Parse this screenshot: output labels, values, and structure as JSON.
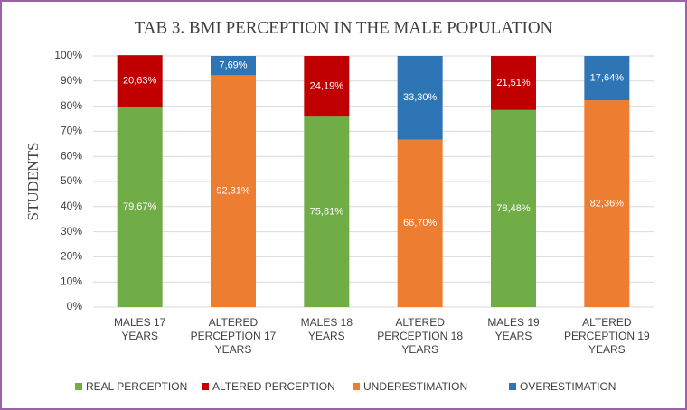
{
  "chart_data": {
    "type": "stacked_bar",
    "title": "TAB 3. BMI PERCEPTION IN THE MALE POPULATION",
    "y_label": "STUDENTS",
    "categories": [
      "MALES 17 YEARS",
      "ALTERED PERCEPTION 17 YEARS",
      "MALES 18 YEARS",
      "ALTERED PERCEPTION 18 YEARS",
      "MALES 19 YEARS",
      "ALTERED PERCEPTION 19 YEARS"
    ],
    "series": [
      {
        "name": "REAL PERCEPTION",
        "color": "#70ad47",
        "values": [
          79.67,
          null,
          75.81,
          null,
          78.48,
          null
        ],
        "value_labels": [
          "79,67%",
          null,
          "75,81%",
          null,
          "78,48%",
          null
        ]
      },
      {
        "name": "ALTERED PERCEPTION",
        "color": "#c00000",
        "values": [
          20.63,
          null,
          24.19,
          null,
          21.51,
          null
        ],
        "value_labels": [
          "20,63%",
          null,
          "24,19%",
          null,
          "21,51%",
          null
        ]
      },
      {
        "name": "UNDERESTIMATION",
        "color": "#ed7d31",
        "values": [
          null,
          92.31,
          null,
          66.7,
          null,
          82.36
        ],
        "value_labels": [
          null,
          "92,31%",
          null,
          "66,70%",
          null,
          "82,36%"
        ]
      },
      {
        "name": "OVERESTIMATION",
        "color": "#2e75b6",
        "values": [
          null,
          7.69,
          null,
          33.3,
          null,
          17.64
        ],
        "value_labels": [
          null,
          "7,69%",
          null,
          "33,30%",
          null,
          "17,64%"
        ]
      }
    ],
    "ylim": [
      0,
      100
    ],
    "yticks": [
      {
        "value": 0,
        "label": "0%"
      },
      {
        "value": 10,
        "label": "10%"
      },
      {
        "value": 20,
        "label": "20%"
      },
      {
        "value": 30,
        "label": "30%"
      },
      {
        "value": 40,
        "label": "40%"
      },
      {
        "value": 50,
        "label": "50%"
      },
      {
        "value": 60,
        "label": "60%"
      },
      {
        "value": 70,
        "label": "70%"
      },
      {
        "value": 80,
        "label": "80%"
      },
      {
        "value": 90,
        "label": "90%"
      },
      {
        "value": 100,
        "label": "100%"
      }
    ],
    "grid": true,
    "legend": "bottom"
  }
}
